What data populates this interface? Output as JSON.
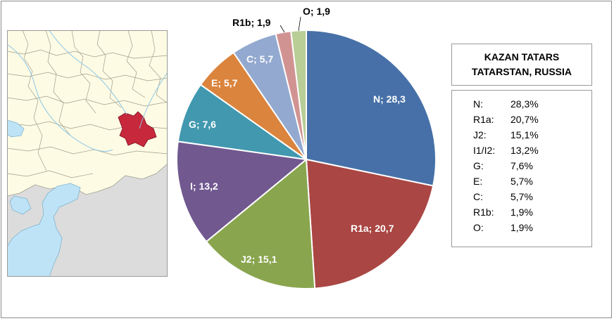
{
  "chart_data": {
    "type": "pie",
    "start_angle_deg": 90,
    "direction": "clockwise",
    "slices": [
      {
        "label": "N",
        "value": 28.3,
        "data_label": "N; 28,3",
        "color": "#4670a7"
      },
      {
        "label": "R1a",
        "value": 20.7,
        "data_label": "R1a; 20,7",
        "color": "#aa4643"
      },
      {
        "label": "J2",
        "value": 15.1,
        "data_label": "J2; 15,1",
        "color": "#89a54e"
      },
      {
        "label": "I",
        "value": 13.2,
        "data_label": "I; 13,2",
        "color": "#71588f"
      },
      {
        "label": "G",
        "value": 7.6,
        "data_label": "G; 7,6",
        "color": "#4198af"
      },
      {
        "label": "E",
        "value": 5.7,
        "data_label": "E; 5,7",
        "color": "#db843d"
      },
      {
        "label": "C",
        "value": 5.7,
        "data_label": "C; 5,7",
        "color": "#93a9cf"
      },
      {
        "label": "R1b",
        "value": 1.9,
        "data_label": "R1b; 1,9",
        "color": "#d19392"
      },
      {
        "label": "O",
        "value": 1.9,
        "data_label": "O; 1,9",
        "color": "#b9cd96"
      }
    ],
    "title_lines": [
      "KAZAN TATARS",
      "TATARSTAN, RUSSIA"
    ],
    "legend": [
      {
        "hap": "N:",
        "pct": "28,3%"
      },
      {
        "hap": "R1a:",
        "pct": "20,7%"
      },
      {
        "hap": "J2:",
        "pct": "15,1%"
      },
      {
        "hap": "I1/I2:",
        "pct": "13,2%"
      },
      {
        "hap": "G:",
        "pct": "7,6%"
      },
      {
        "hap": "E:",
        "pct": "5,7%"
      },
      {
        "hap": "C:",
        "pct": "5,7%"
      },
      {
        "hap": "R1b:",
        "pct": "1,9%"
      },
      {
        "hap": "O:",
        "pct": "1,9%"
      }
    ]
  },
  "map": {
    "highlight_color": "#c8283c",
    "land_color": "#fdfbe4",
    "neighbor_color": "#dcdcdc",
    "water_color": "#bfe3f6"
  }
}
